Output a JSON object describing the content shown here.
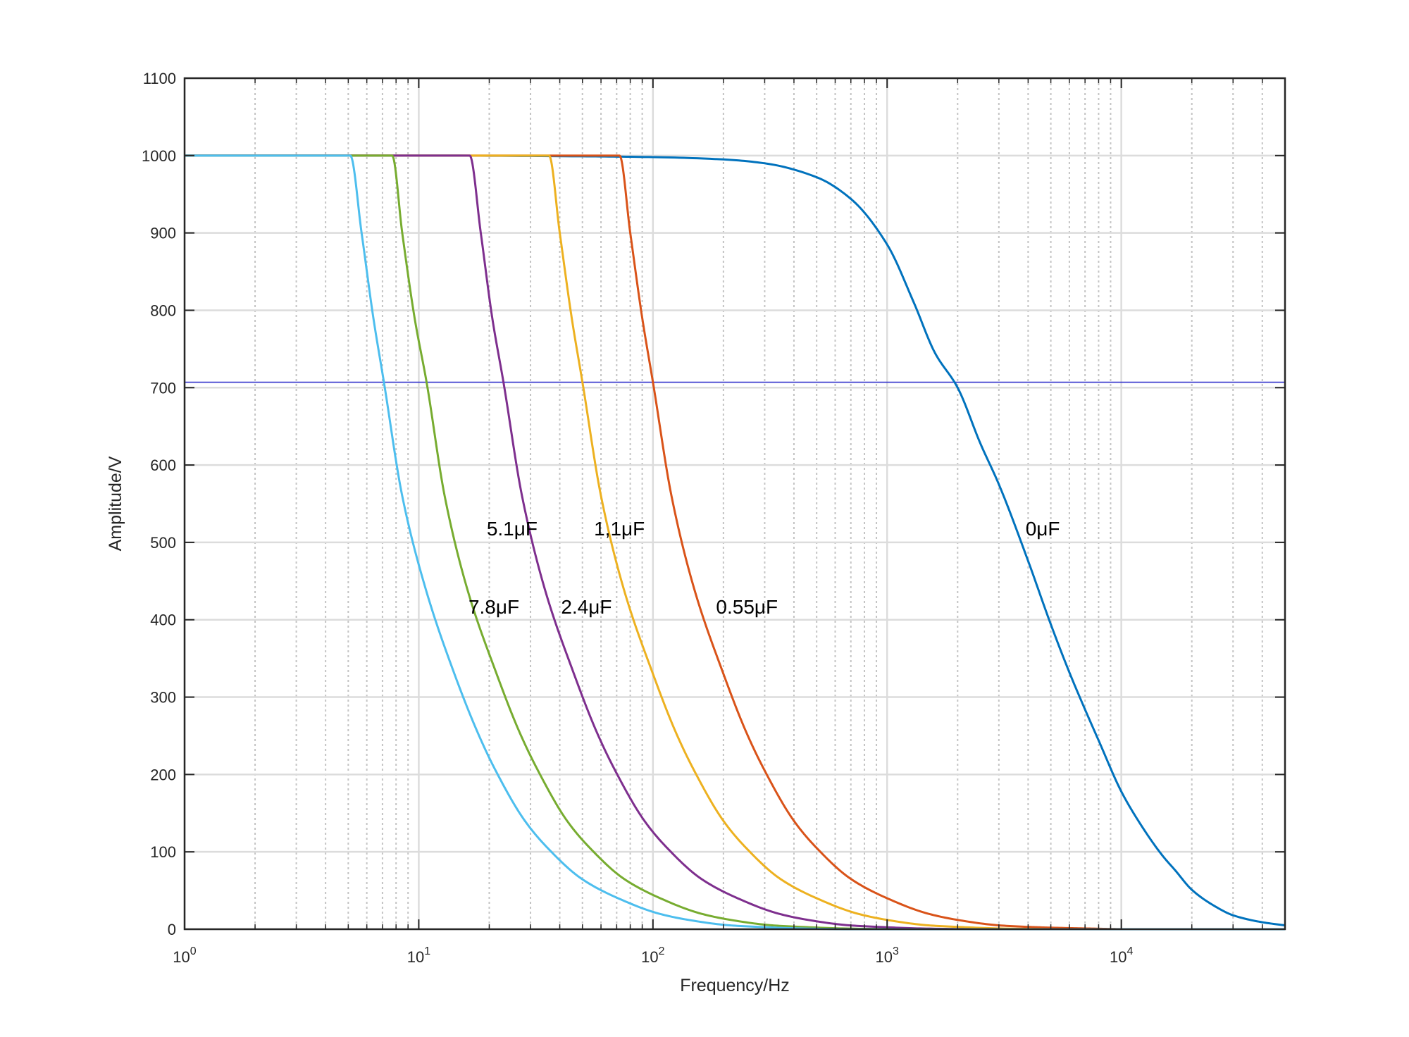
{
  "chart_data": {
    "type": "line",
    "title": "",
    "xlabel": "Frequency/Hz",
    "ylabel": "Amplitude/V",
    "xscale": "log",
    "xlim": [
      1,
      50000
    ],
    "ylim": [
      0,
      1100
    ],
    "grid": true,
    "minor_grid": true,
    "x_ticks": [
      {
        "value": 1,
        "base": "10",
        "exp": "0"
      },
      {
        "value": 10,
        "base": "10",
        "exp": "1"
      },
      {
        "value": 100,
        "base": "10",
        "exp": "2"
      },
      {
        "value": 1000,
        "base": "10",
        "exp": "3"
      },
      {
        "value": 10000,
        "base": "10",
        "exp": "4"
      }
    ],
    "y_ticks": [
      {
        "value": 0,
        "label": "0"
      },
      {
        "value": 100,
        "label": "100"
      },
      {
        "value": 200,
        "label": "200"
      },
      {
        "value": 300,
        "label": "300"
      },
      {
        "value": 400,
        "label": "400"
      },
      {
        "value": 500,
        "label": "500"
      },
      {
        "value": 600,
        "label": "600"
      },
      {
        "value": 700,
        "label": "700"
      },
      {
        "value": 800,
        "label": "800"
      },
      {
        "value": 900,
        "label": "900"
      },
      {
        "value": 1000,
        "label": "1000"
      },
      {
        "value": 1100,
        "label": "1100"
      }
    ],
    "reference_lines": [
      {
        "y": 707,
        "color": "#3333cc"
      }
    ],
    "series": [
      {
        "name": "0μF",
        "color": "#0072bd",
        "x": [
          1,
          10,
          50,
          100,
          200,
          300,
          500,
          700,
          1000,
          1300,
          1600,
          2000,
          2500,
          3000,
          4000,
          5000,
          6000,
          7000,
          8000,
          10000,
          12000,
          15000,
          17000,
          20000,
          25000,
          30000,
          40000,
          50000
        ],
        "y": [
          1000,
          1000,
          999,
          998,
          995,
          990,
          972,
          944,
          885,
          810,
          745,
          700,
          628,
          575,
          476,
          394,
          332,
          284,
          244,
          178,
          137,
          95,
          76,
          51,
          30,
          18,
          9,
          5
        ]
      },
      {
        "name": "0.55μF",
        "color": "#d95319",
        "x": [
          1,
          72,
          80,
          90,
          100,
          120,
          150,
          200,
          250,
          300,
          400,
          500,
          700,
          1000,
          1500,
          2000,
          3000,
          4000,
          5000,
          7000,
          10000
        ],
        "y": [
          1000,
          1000,
          900,
          790,
          707,
          560,
          440,
          330,
          255,
          205,
          140,
          105,
          65,
          40,
          20,
          12,
          5,
          3,
          2,
          1,
          0
        ]
      },
      {
        "name": "1,1μF",
        "color": "#edb120",
        "x": [
          1,
          36,
          40,
          45,
          50,
          60,
          75,
          100,
          125,
          150,
          200,
          250,
          350,
          500,
          750,
          1000,
          1500,
          2000,
          3000,
          5000
        ],
        "y": [
          1000,
          1000,
          900,
          790,
          707,
          560,
          440,
          330,
          255,
          205,
          140,
          105,
          65,
          40,
          20,
          12,
          5,
          3,
          1,
          0
        ]
      },
      {
        "name": "2.4μF",
        "color": "#7e2f8e",
        "x": [
          1,
          16.5,
          18.4,
          20.6,
          23,
          27.6,
          34.5,
          46,
          57.5,
          69,
          92,
          115,
          161,
          230,
          345,
          460,
          690,
          920,
          1380,
          2300
        ],
        "y": [
          1000,
          1000,
          900,
          790,
          707,
          560,
          440,
          330,
          255,
          205,
          140,
          105,
          65,
          40,
          20,
          12,
          5,
          3,
          1,
          0
        ]
      },
      {
        "name": "5.1μF",
        "color": "#77ac30",
        "x": [
          1,
          7.7,
          8.5,
          9.6,
          10.8,
          12.9,
          16.1,
          21.5,
          26.9,
          32.3,
          43,
          53.8,
          75.3,
          107.5,
          161,
          215,
          323,
          430,
          645,
          1075
        ],
        "y": [
          1000,
          1000,
          900,
          790,
          707,
          560,
          440,
          330,
          255,
          205,
          140,
          105,
          65,
          40,
          20,
          12,
          5,
          3,
          1,
          0
        ]
      },
      {
        "name": "7.8μF",
        "color": "#4dbeee",
        "x": [
          1,
          5.1,
          5.7,
          6.4,
          7.1,
          8.5,
          10.7,
          14.2,
          17.8,
          21.3,
          28.4,
          35.5,
          49.7,
          71,
          106.5,
          142,
          213,
          284,
          426,
          710,
          50000
        ],
        "y": [
          1000,
          1000,
          900,
          790,
          707,
          560,
          440,
          330,
          255,
          205,
          140,
          105,
          65,
          40,
          20,
          12,
          5,
          3,
          1,
          0,
          0
        ]
      }
    ],
    "annotations": [
      {
        "text": "0μF",
        "x": 3900,
        "y": 509
      },
      {
        "text": "0.55μF",
        "x": 186,
        "y": 408
      },
      {
        "text": "1,1μF",
        "x": 56,
        "y": 509
      },
      {
        "text": "2.4μF",
        "x": 40.5,
        "y": 408
      },
      {
        "text": "5.1μF",
        "x": 19.5,
        "y": 509
      },
      {
        "text": "7.8μF",
        "x": 16.3,
        "y": 408
      }
    ]
  }
}
